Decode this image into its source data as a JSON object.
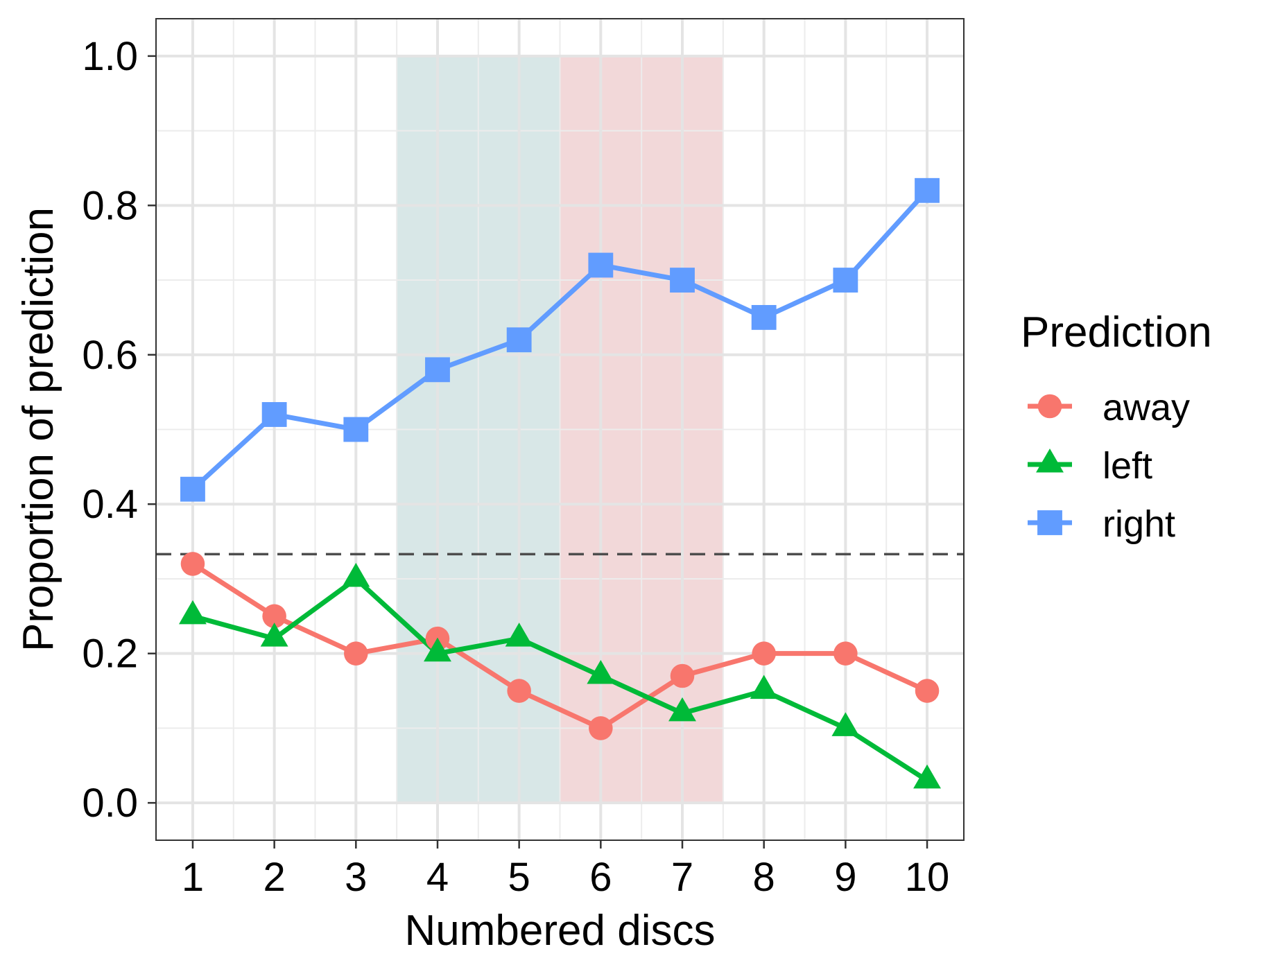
{
  "chart_data": {
    "type": "line",
    "title": "",
    "xlabel": "Numbered discs",
    "ylabel": "Proportion of prediction",
    "x": [
      1,
      2,
      3,
      4,
      5,
      6,
      7,
      8,
      9,
      10
    ],
    "x_tick_labels": [
      "1",
      "2",
      "3",
      "4",
      "5",
      "6",
      "7",
      "8",
      "9",
      "10"
    ],
    "xlim": [
      0.55,
      10.45
    ],
    "ylim": [
      -0.05,
      1.05
    ],
    "y_ticks": [
      0.0,
      0.2,
      0.4,
      0.6,
      0.8,
      1.0
    ],
    "y_tick_labels": [
      "0.0",
      "0.2",
      "0.4",
      "0.6",
      "0.8",
      "1.0"
    ],
    "grid": true,
    "legend": {
      "title": "Prediction",
      "position": "right"
    },
    "reference_line": {
      "y": 0.333,
      "style": "dashed",
      "color": "#4d4d4d"
    },
    "shaded_regions": [
      {
        "x_start": 3.5,
        "x_end": 5.5,
        "y_start": 0,
        "y_end": 1,
        "color": "#d6e6e6"
      },
      {
        "x_start": 5.5,
        "x_end": 7.5,
        "y_start": 0,
        "y_end": 1,
        "color": "#f1d6d7"
      }
    ],
    "series": [
      {
        "name": "away",
        "marker": "circle",
        "color": "#f8766d",
        "values": [
          0.32,
          0.25,
          0.2,
          0.22,
          0.15,
          0.1,
          0.17,
          0.2,
          0.2,
          0.15
        ]
      },
      {
        "name": "left",
        "marker": "triangle",
        "color": "#00ba38",
        "values": [
          0.25,
          0.22,
          0.3,
          0.2,
          0.22,
          0.17,
          0.12,
          0.15,
          0.1,
          0.03
        ]
      },
      {
        "name": "right",
        "marker": "square",
        "color": "#619cff",
        "values": [
          0.42,
          0.52,
          0.5,
          0.58,
          0.62,
          0.72,
          0.7,
          0.65,
          0.7,
          0.82
        ]
      }
    ]
  }
}
